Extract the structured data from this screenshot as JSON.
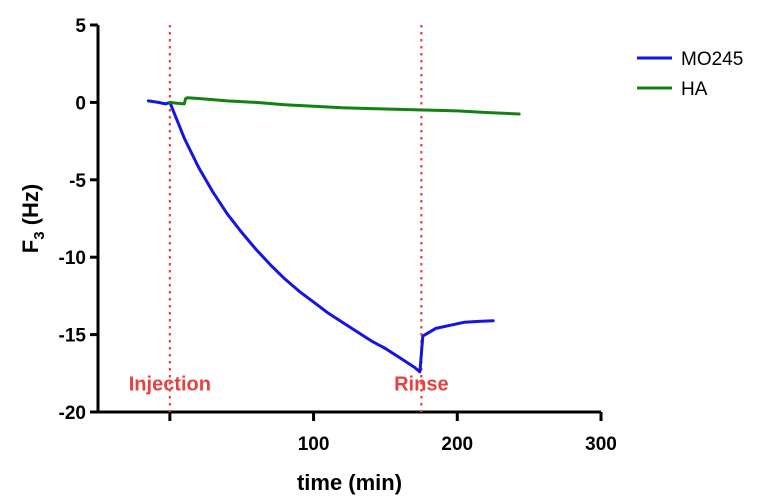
{
  "chart_data": {
    "type": "line",
    "xlabel": "time (min)",
    "ylabel_main": "F",
    "ylabel_sub": "3",
    "ylabel_unit": " (Hz)",
    "xlim": [
      -50,
      300
    ],
    "ylim": [
      -20,
      5
    ],
    "x_ticks": [
      100,
      200,
      300
    ],
    "y_ticks": [
      5,
      0,
      -5,
      -10,
      -15,
      -20
    ],
    "grid": false,
    "legend_position": "top-right",
    "series": [
      {
        "name": "MO245",
        "color": "#1515e0",
        "x": [
          -15,
          -8,
          -3,
          0,
          10,
          20,
          30,
          40,
          50,
          60,
          70,
          80,
          90,
          100,
          110,
          120,
          130,
          140,
          150,
          160,
          170,
          174,
          176,
          185,
          195,
          205,
          215,
          225
        ],
        "y": [
          0.1,
          0.0,
          -0.1,
          0.0,
          -2.3,
          -4.2,
          -5.8,
          -7.2,
          -8.4,
          -9.5,
          -10.5,
          -11.4,
          -12.2,
          -12.9,
          -13.6,
          -14.2,
          -14.8,
          -15.4,
          -15.9,
          -16.5,
          -17.1,
          -17.4,
          -15.1,
          -14.6,
          -14.4,
          -14.2,
          -14.15,
          -14.1
        ]
      },
      {
        "name": "HA",
        "color": "#148014",
        "x": [
          0,
          5,
          10,
          11,
          12,
          20,
          40,
          60,
          80,
          100,
          120,
          140,
          160,
          180,
          200,
          220,
          243
        ],
        "y": [
          0.0,
          -0.05,
          -0.1,
          0.25,
          0.3,
          0.25,
          0.1,
          0.0,
          -0.15,
          -0.25,
          -0.35,
          -0.4,
          -0.45,
          -0.5,
          -0.55,
          -0.65,
          -0.75
        ]
      }
    ],
    "annotations": [
      {
        "x": 0,
        "label": "Injection",
        "color": "#e84040"
      },
      {
        "x": 175,
        "label": "Rinse",
        "color": "#e84040"
      }
    ]
  }
}
